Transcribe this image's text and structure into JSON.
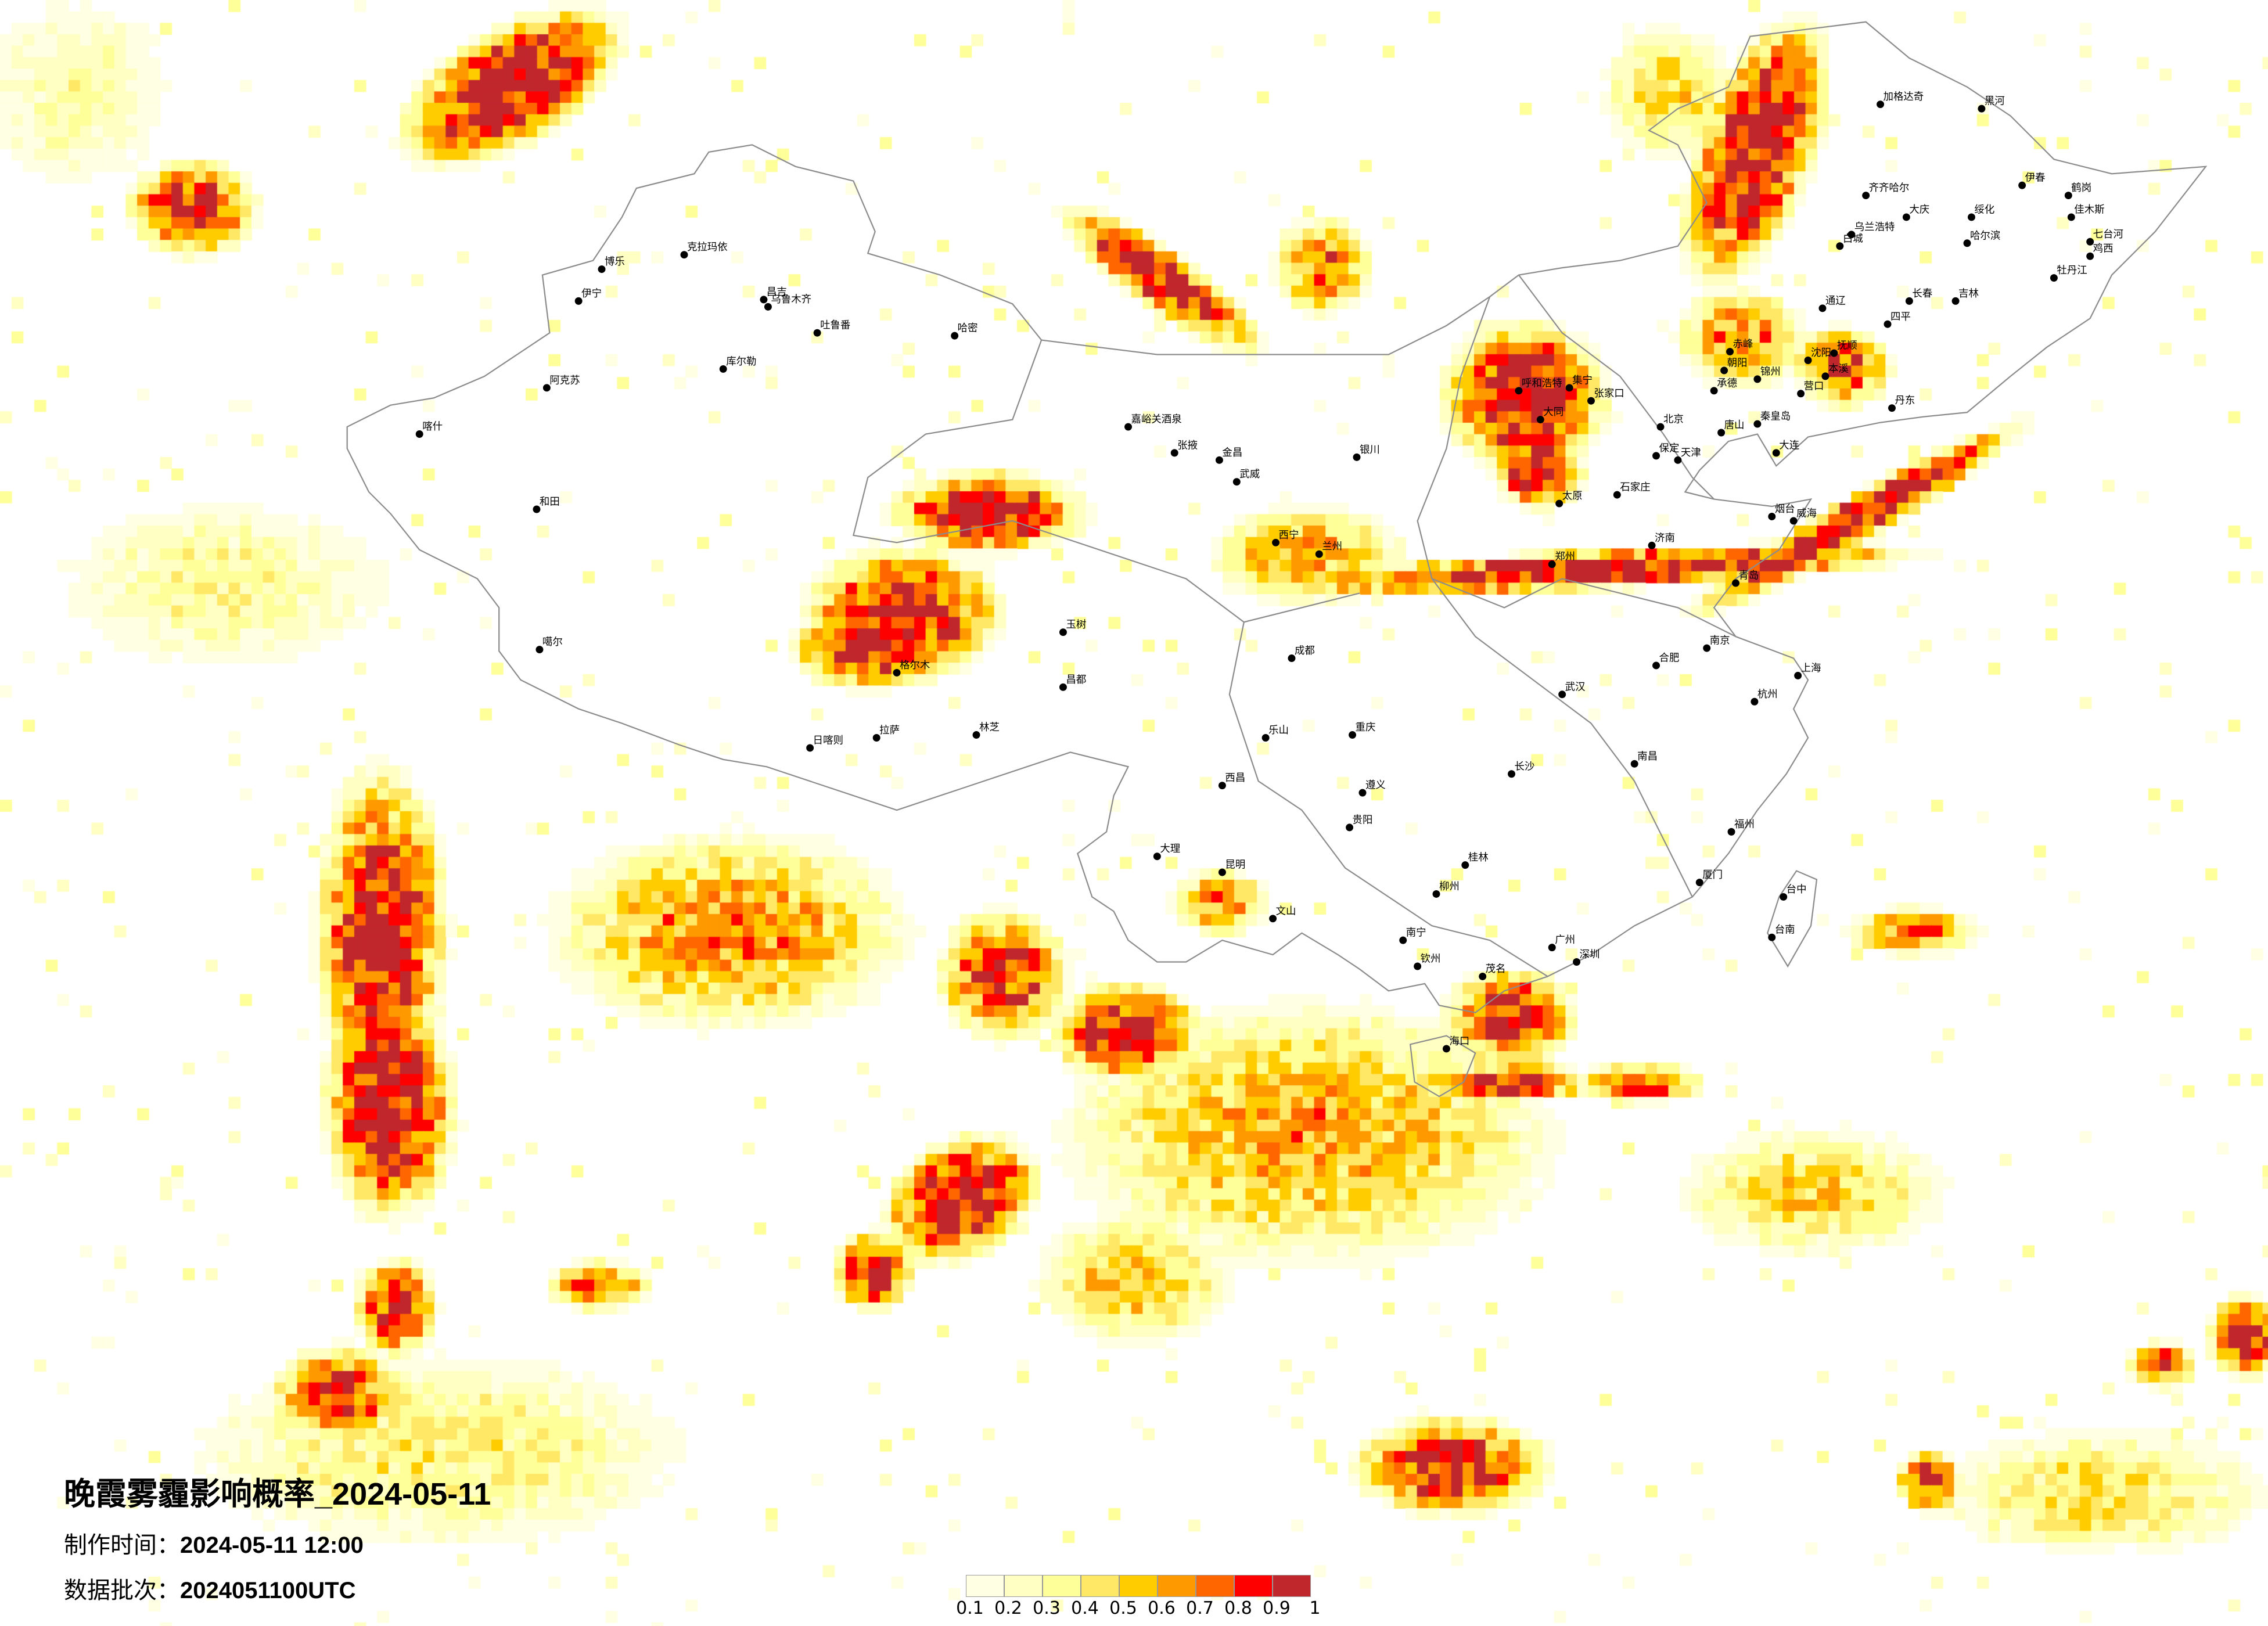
{
  "title": "晚霞雾霾影响概率_2024-05-11",
  "production_time": {
    "label": "制作时间：",
    "value": "2024-05-11 12:00"
  },
  "data_batch": {
    "label": "数据批次：",
    "value": "2024051100UTC"
  },
  "legend": {
    "ticks": [
      "0.1",
      "0.2",
      "0.3",
      "0.4",
      "0.5",
      "0.6",
      "0.7",
      "0.8",
      "0.9",
      "1"
    ],
    "colors": [
      "#FFFFE3",
      "#FFFFC4",
      "#FFFF99",
      "#FFE866",
      "#FFCC00",
      "#FF9900",
      "#FF6600",
      "#FF0000",
      "#C0272D"
    ]
  },
  "map": {
    "boundary_color": "#8C8C8C",
    "city_marker_color": "#000000",
    "cities": [
      "克拉玛依",
      "博乐",
      "伊宁",
      "昌吉",
      "乌鲁木齐",
      "吐鲁番",
      "哈密",
      "库尔勒",
      "阿克苏",
      "喀什",
      "和田",
      "噶尔",
      "日喀则",
      "拉萨",
      "林芝",
      "格尔木",
      "玉树",
      "昌都",
      "加格达奇",
      "黑河",
      "伊春",
      "鹤岗",
      "佳木斯",
      "七台河",
      "鸡西",
      "齐齐哈尔",
      "大庆",
      "绥化",
      "哈尔滨",
      "乌兰浩特",
      "白城",
      "牡丹江",
      "长春",
      "吉林",
      "四平",
      "通辽",
      "赤峰",
      "沈阳",
      "抚顺",
      "本溪",
      "丹东",
      "营口",
      "大连",
      "锦州",
      "朝阳",
      "呼和浩特",
      "集宁",
      "张家口",
      "大同",
      "承德",
      "北京",
      "唐山",
      "天津",
      "秦皇岛",
      "保定",
      "石家庄",
      "太原",
      "济南",
      "烟台",
      "威海",
      "青岛",
      "郑州",
      "嘉峪关酒泉",
      "张掖",
      "金昌",
      "武威",
      "西宁",
      "兰州",
      "银川",
      "成都",
      "乐山",
      "重庆",
      "遵义",
      "贵阳",
      "西昌",
      "大理",
      "昆明",
      "文山",
      "南宁",
      "柳州",
      "桂林",
      "广州",
      "深圳",
      "茂名",
      "钦州",
      "海口",
      "武汉",
      "长沙",
      "南昌",
      "合肥",
      "南京",
      "上海",
      "杭州",
      "福州",
      "厦门",
      "台中",
      "台南"
    ]
  }
}
